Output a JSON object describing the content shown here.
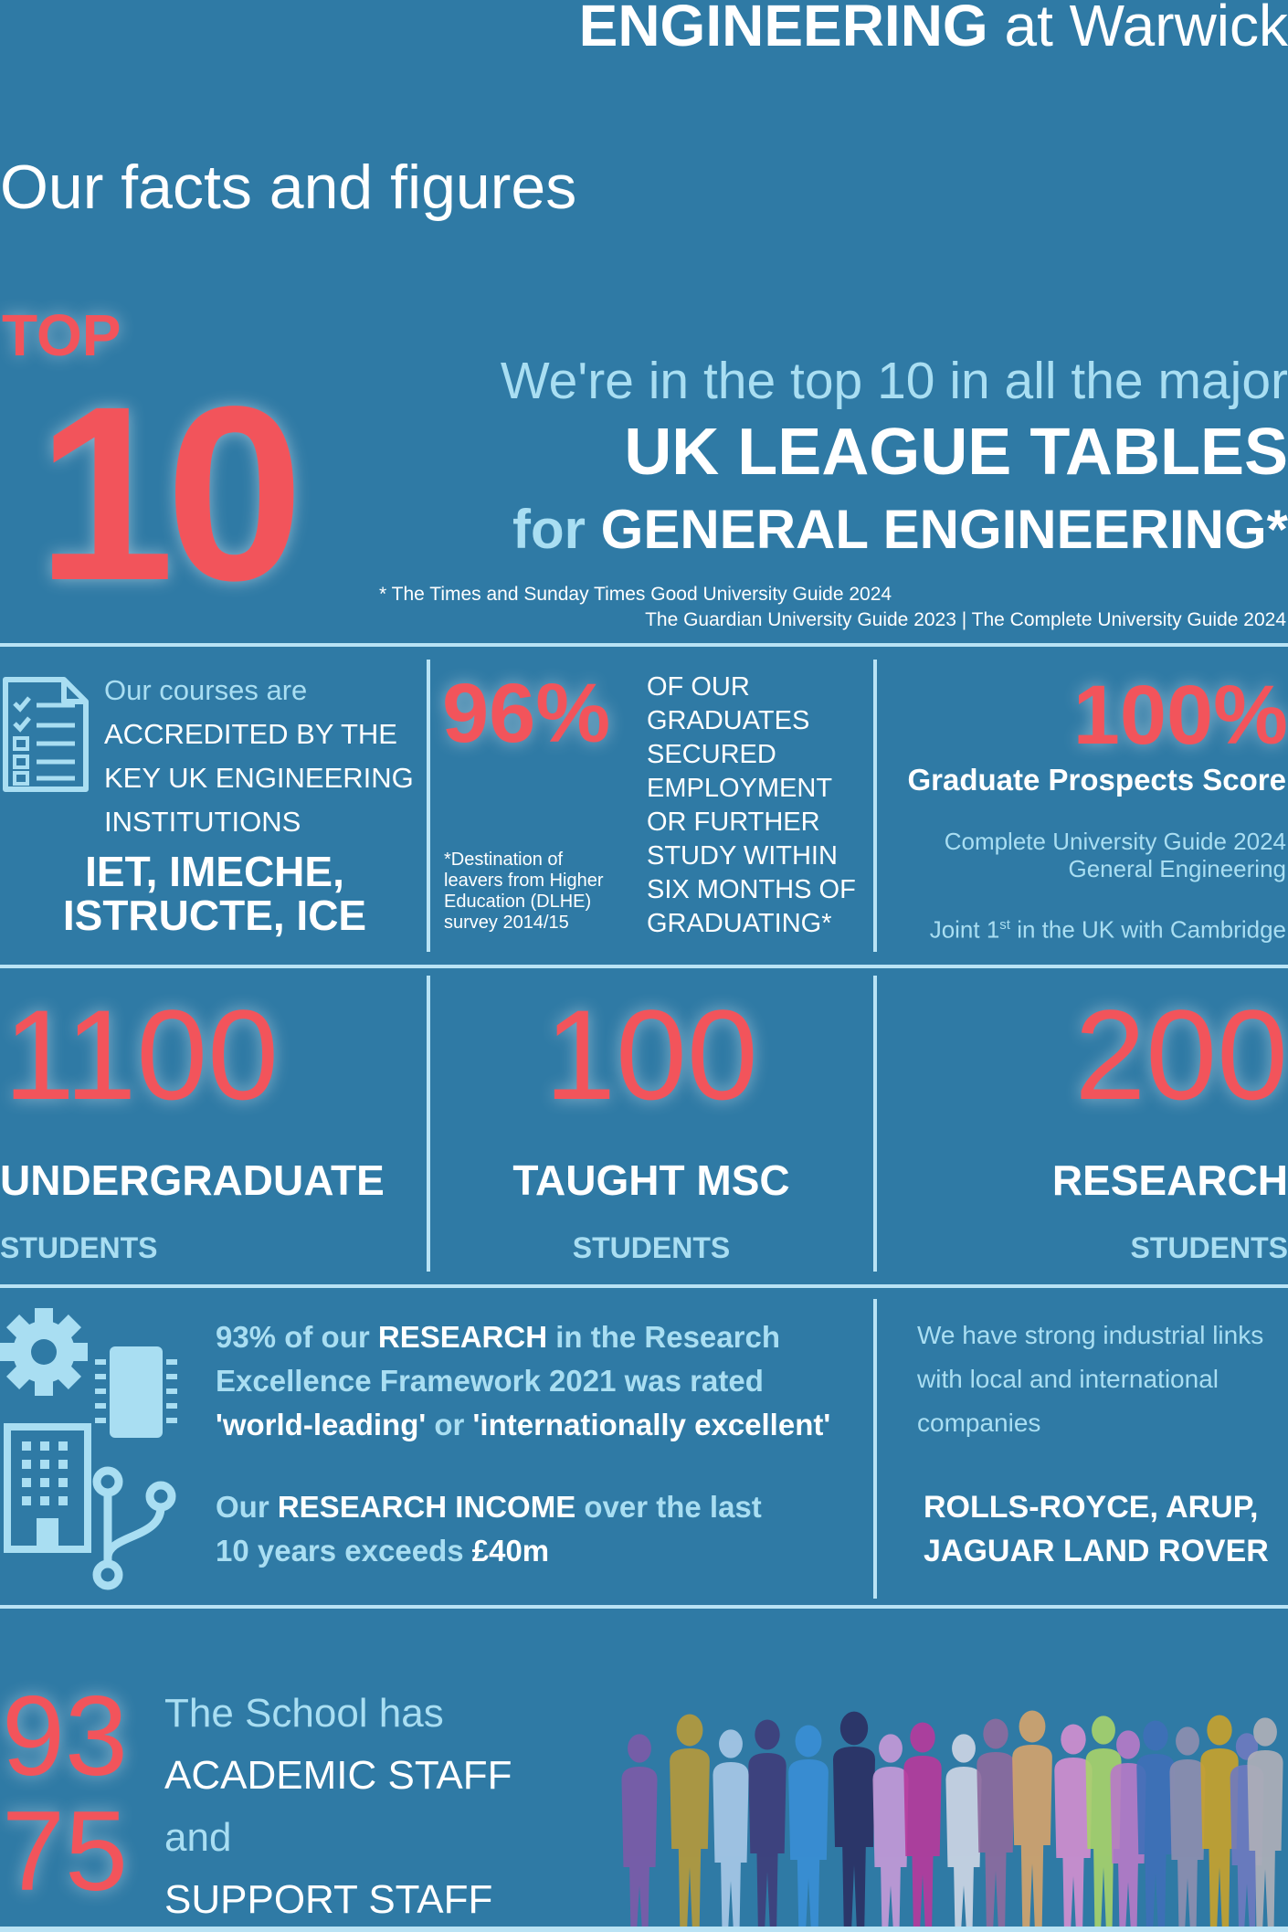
{
  "header": {
    "title_bold": "ENGINEERING",
    "title_rest": " at Warwick",
    "subtitle": "Our facts and figures"
  },
  "league": {
    "top_label": "TOP",
    "top_number": "10",
    "line1": "We're in the top 10 in all the major",
    "line2": "UK LEAGUE TABLES",
    "line3_prefix": "for ",
    "line3_bold": "GENERAL ENGINEERING*",
    "source1": "* The Times and Sunday Times Good University Guide 2024",
    "source2": "The Guardian University Guide 2023  |  The Complete University Guide 2024"
  },
  "accreditation": {
    "icon": "checklist-icon",
    "line1": "Our courses are",
    "line2": "ACCREDITED BY THE",
    "line3": "KEY UK ENGINEERING",
    "line4": "INSTITUTIONS",
    "bodies_line1": "IET,  IMECHE,",
    "bodies_line2": "ISTRUCTE,  ICE"
  },
  "employment": {
    "percent": "96%",
    "lines": [
      "OF OUR",
      "GRADUATES",
      "SECURED",
      "EMPLOYMENT",
      "OR FURTHER",
      "STUDY WITHIN",
      "SIX MONTHS OF",
      "GRADUATING*"
    ],
    "footnote_lines": [
      "*Destination of",
      "leavers from Higher",
      "Education (DLHE)",
      "survey 2014/15"
    ]
  },
  "prospects": {
    "percent": "100%",
    "label": "Graduate Prospects Score",
    "source1": "Complete University Guide 2024",
    "source2": "General Engineering",
    "joint_prefix": "Joint 1",
    "joint_sup": "st",
    "joint_suffix": " in the UK with Cambridge"
  },
  "students": [
    {
      "number": "1100",
      "label": "UNDERGRADUATE",
      "sub": "STUDENTS"
    },
    {
      "number": "100",
      "label": "TAUGHT MSC",
      "sub": "STUDENTS"
    },
    {
      "number": "200",
      "label": "RESEARCH",
      "sub": "STUDENTS"
    }
  ],
  "research": {
    "icon": "research-tech-icon",
    "p1_a": "93% of our ",
    "p1_b": "RESEARCH",
    "p1_c": " in the Research",
    "p1_line2": "Excellence Framework 2021 was rated",
    "p1_line3_a": "'world-leading'",
    "p1_line3_b": " or ",
    "p1_line3_c": "'internationally excellent'",
    "p2_a": "Our ",
    "p2_b": "RESEARCH INCOME",
    "p2_c": " over the last",
    "p2_line2_a": "10 years exceeds ",
    "p2_line2_b": "£40m"
  },
  "industry": {
    "line1": "We have strong industrial links",
    "line2": "with local and international",
    "line3": "companies",
    "companies_line1": "ROLLS-ROYCE, ARUP,",
    "companies_line2": "JAGUAR LAND ROVER"
  },
  "staff": {
    "academic_number": "93",
    "support_number": "75",
    "line1": "The School has",
    "line2": "ACADEMIC STAFF",
    "line3": "and",
    "line4": "SUPPORT STAFF",
    "crowd": "crowd-silhouette-illustration"
  }
}
